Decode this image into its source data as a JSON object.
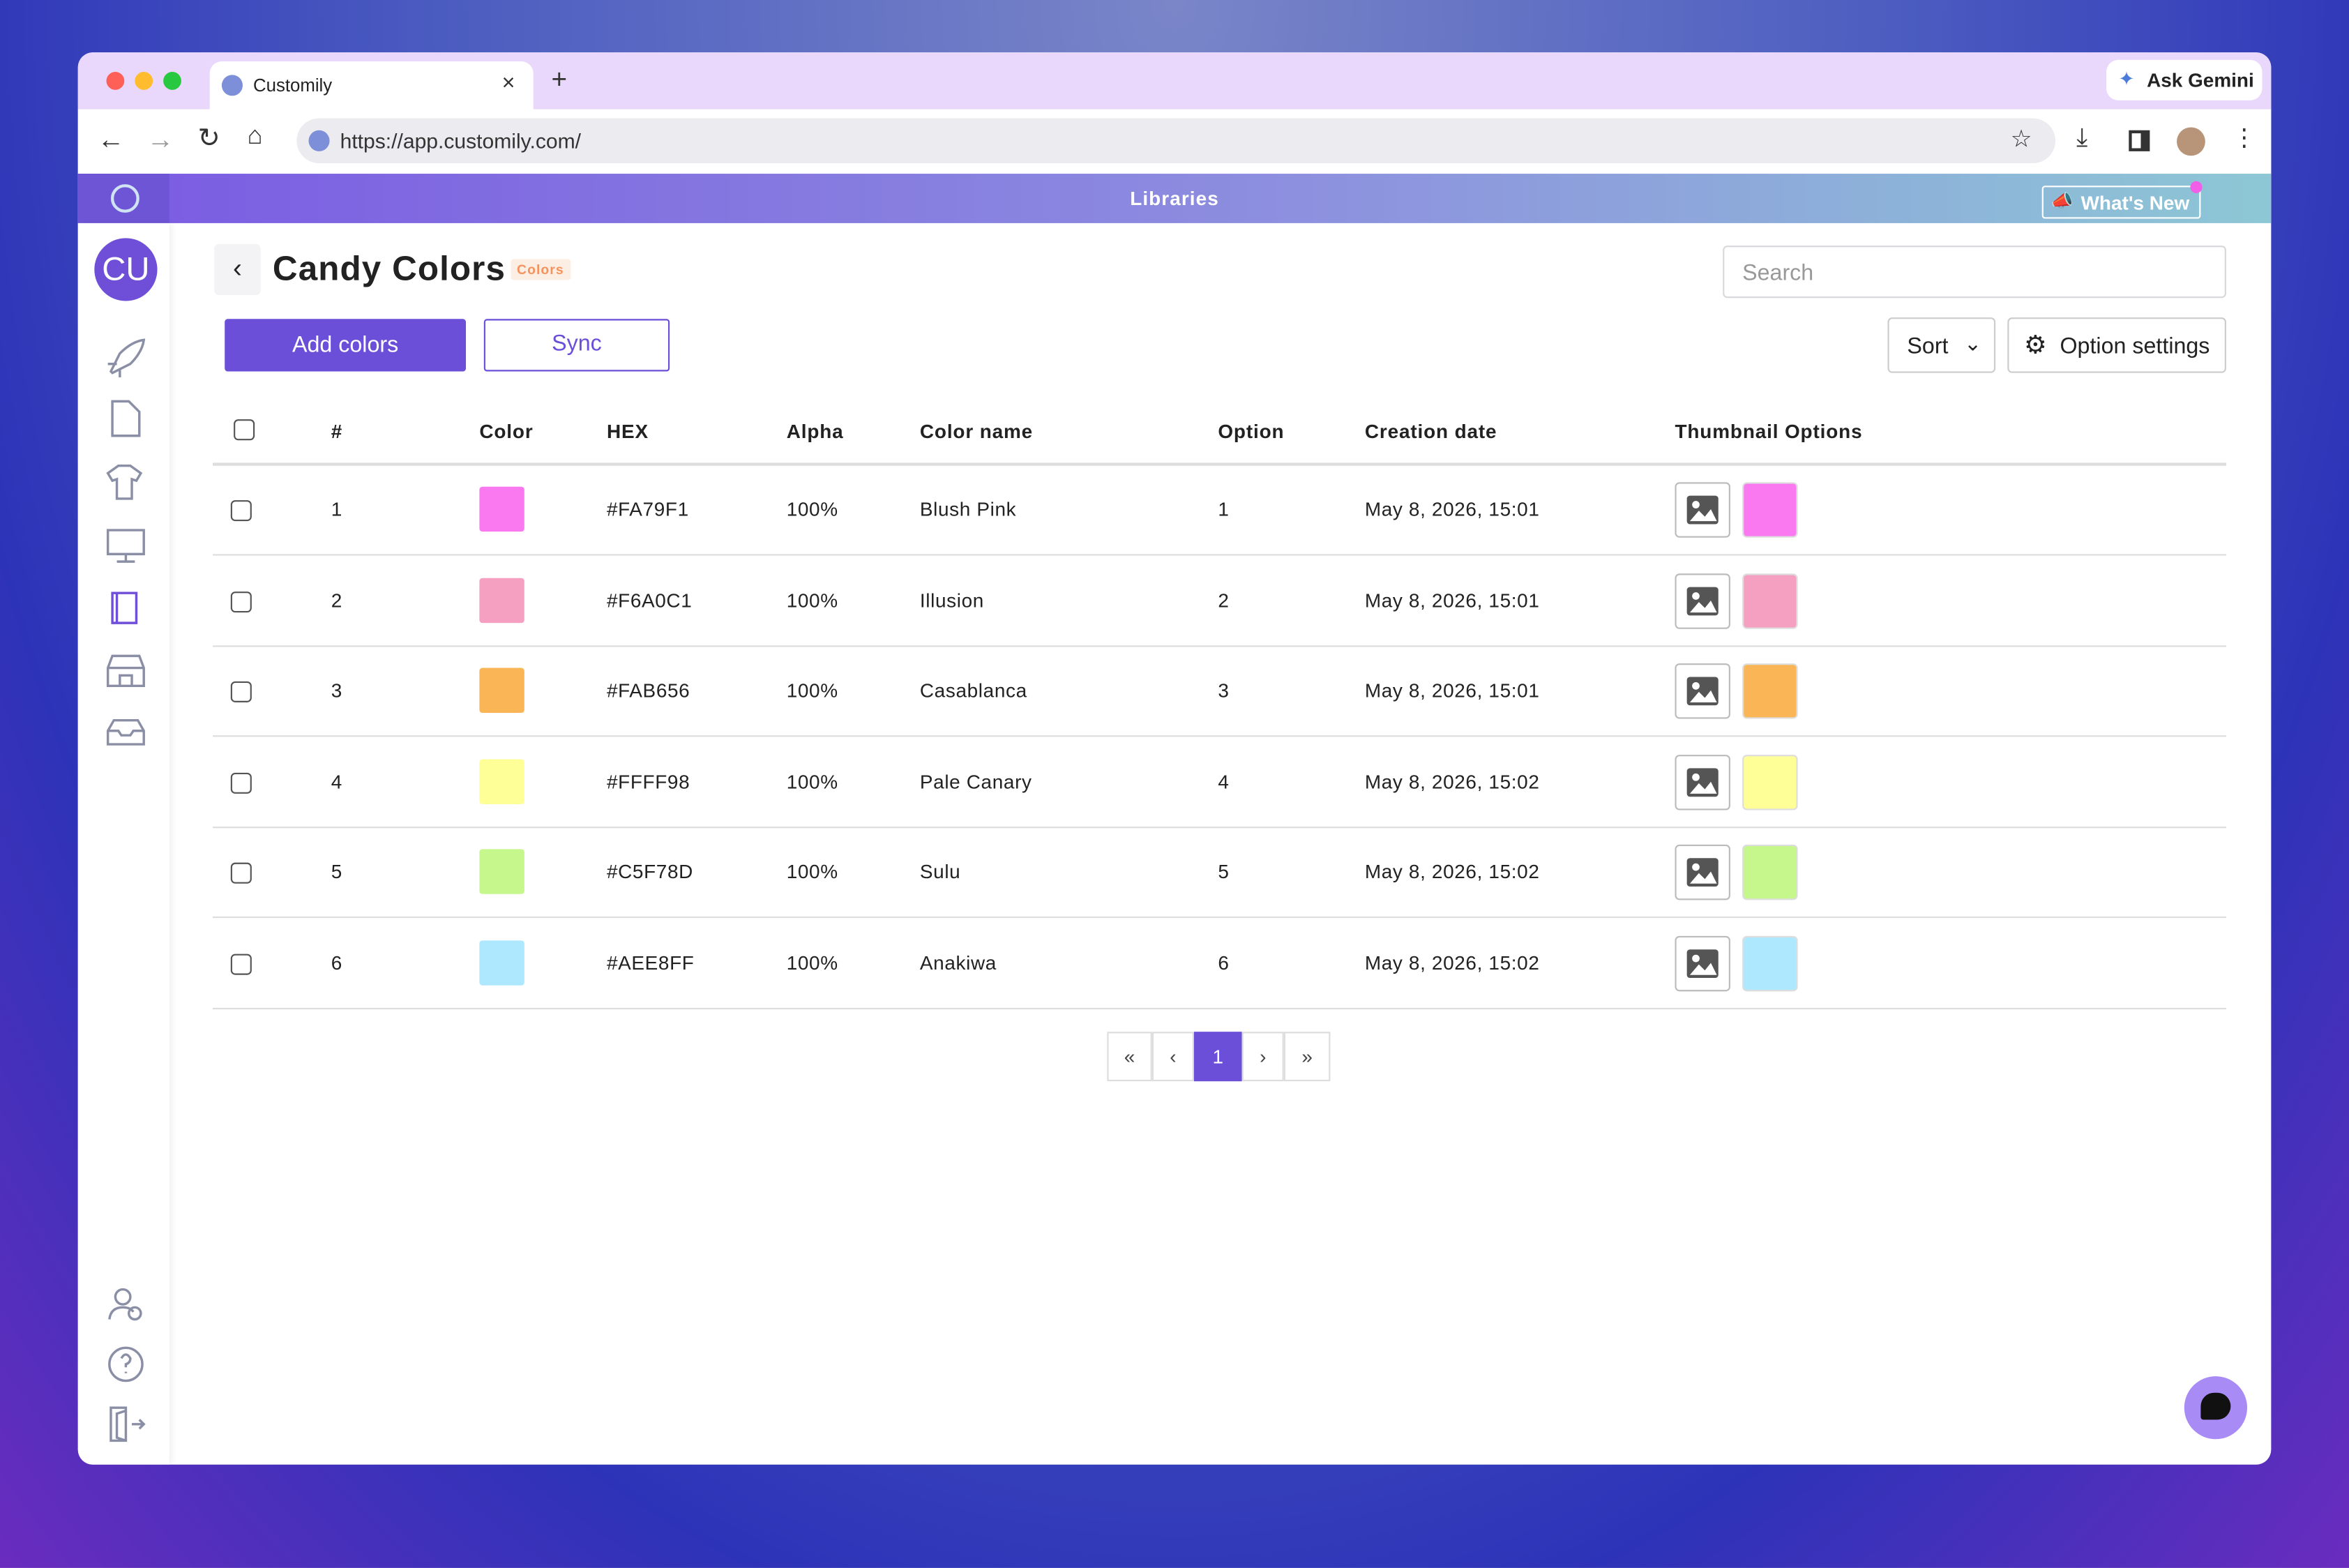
{
  "browser": {
    "tab_title": "Customily",
    "url": "https://app.customily.com/",
    "gemini": "Ask Gemini"
  },
  "header": {
    "title": "Libraries",
    "whats_new": "What's New"
  },
  "sidebar": {
    "avatar": "CU"
  },
  "page": {
    "title": "Candy Colors",
    "tag": "Colors",
    "search_placeholder": "Search",
    "add_button": "Add colors",
    "sync_button": "Sync",
    "sort_button": "Sort",
    "settings_button": "Option settings"
  },
  "table": {
    "columns": [
      "#",
      "Color",
      "HEX",
      "Alpha",
      "Color name",
      "Option",
      "Creation date",
      "Thumbnail Options"
    ],
    "rows": [
      [
        1,
        "#FA79F1",
        "100%",
        "Blush Pink",
        1,
        "May 8, 2026, 15:01"
      ],
      [
        2,
        "#F6A0C1",
        "100%",
        "Illusion",
        2,
        "May 8, 2026, 15:01"
      ],
      [
        3,
        "#FAB656",
        "100%",
        "Casablanca",
        3,
        "May 8, 2026, 15:01"
      ],
      [
        4,
        "#FFFF98",
        "100%",
        "Pale Canary",
        4,
        "May 8, 2026, 15:02"
      ],
      [
        5,
        "#C5F78D",
        "100%",
        "Sulu",
        5,
        "May 8, 2026, 15:02"
      ],
      [
        6,
        "#AEE8FF",
        "100%",
        "Anakiwa",
        6,
        "May 8, 2026, 15:02"
      ]
    ]
  },
  "pagination": [
    "«",
    "‹",
    "1",
    "›",
    "»"
  ]
}
